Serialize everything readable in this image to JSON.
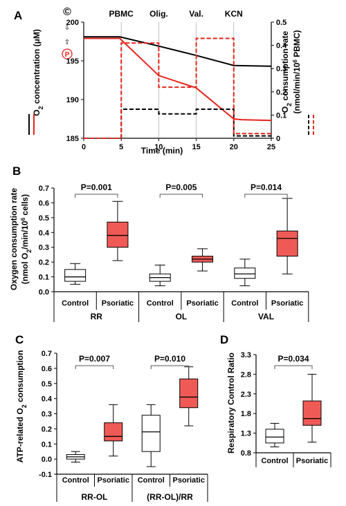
{
  "colors": {
    "control": "#000000",
    "psoriatic": "#e8221b",
    "box_fill_control": "#ffffff",
    "box_fill_psoriatic": "#f05a56"
  },
  "chart_data": [
    {
      "panel": "A",
      "type": "line",
      "xlabel": "Time (min)",
      "ylabel_left": "O2 concentration (μM)",
      "ylabel_right": "O2 consumption rate (nmol/min/10^6 PBMC)",
      "xlim": [
        0,
        25
      ],
      "ylim_left": [
        185,
        200
      ],
      "ylim_right": [
        0,
        0.5
      ],
      "x_ticks": [
        "0",
        "5",
        "10",
        "15",
        "20",
        "25"
      ],
      "y_ticks_left": [
        "185",
        "190",
        "195",
        "200"
      ],
      "y_ticks_right": [
        "0",
        "0.1",
        "0.2",
        "0.3",
        "0.4",
        "0.5"
      ],
      "events": [
        {
          "label": "PBMC",
          "x": 5
        },
        {
          "label": "Olig.",
          "x": 10
        },
        {
          "label": "Val.",
          "x": 15
        },
        {
          "label": "KCN",
          "x": 20
        }
      ],
      "markers": {
        "control_symbol": "©",
        "psoriatic_symbol": "P"
      },
      "series": [
        {
          "group": "control",
          "kind": "concentration",
          "style": "solid",
          "x": [
            0,
            4.8,
            10,
            15,
            20,
            25
          ],
          "y": [
            198.1,
            198.1,
            196.9,
            195.7,
            194.4,
            194.3
          ]
        },
        {
          "group": "psoriatic",
          "kind": "concentration",
          "style": "solid",
          "x": [
            0,
            4.8,
            10,
            15,
            20,
            21,
            25
          ],
          "y": [
            197.9,
            197.9,
            193.1,
            191.5,
            187.5,
            187.4,
            187.3
          ]
        },
        {
          "group": "control",
          "kind": "rate",
          "style": "dashed",
          "x": [
            0,
            5,
            5,
            10,
            10,
            15,
            15,
            20,
            20,
            25
          ],
          "y": [
            0,
            0,
            0.125,
            0.125,
            0.105,
            0.105,
            0.125,
            0.125,
            0.01,
            0.01
          ]
        },
        {
          "group": "psoriatic",
          "kind": "rate",
          "style": "dashed",
          "x": [
            0,
            5,
            5,
            10,
            10,
            15,
            15,
            20,
            20,
            25
          ],
          "y": [
            0,
            0,
            0.41,
            0.41,
            0.22,
            0.22,
            0.43,
            0.43,
            0.02,
            0.02
          ]
        }
      ]
    },
    {
      "panel": "B",
      "type": "box",
      "ylabel_lines": [
        "Oxygen consumption rate",
        "(nmol O2/min/10^6 cells)"
      ],
      "ylim": [
        0,
        0.7
      ],
      "y_ticks": [
        "0.0",
        "0.1",
        "0.2",
        "0.3",
        "0.4",
        "0.5",
        "0.6",
        "0.7"
      ],
      "groups": [
        {
          "label": "RR",
          "p_value": "P=0.001",
          "boxes": [
            {
              "category": "Control",
              "min": 0.05,
              "q1": 0.07,
              "median": 0.1,
              "q3": 0.15,
              "max": 0.19
            },
            {
              "category": "Psoriatic",
              "min": 0.21,
              "q1": 0.3,
              "median": 0.38,
              "q3": 0.47,
              "max": 0.61
            }
          ]
        },
        {
          "label": "OL",
          "p_value": "P=0.005",
          "boxes": [
            {
              "category": "Control",
              "min": 0.04,
              "q1": 0.07,
              "median": 0.095,
              "q3": 0.12,
              "max": 0.18
            },
            {
              "category": "Psoriatic",
              "min": 0.14,
              "q1": 0.2,
              "median": 0.22,
              "q3": 0.24,
              "max": 0.29
            }
          ]
        },
        {
          "label": "VAL",
          "p_value": "P=0.014",
          "boxes": [
            {
              "category": "Control",
              "min": 0.04,
              "q1": 0.09,
              "median": 0.12,
              "q3": 0.16,
              "max": 0.22
            },
            {
              "category": "Psoriatic",
              "min": 0.12,
              "q1": 0.24,
              "median": 0.36,
              "q3": 0.41,
              "max": 0.63
            }
          ]
        }
      ]
    },
    {
      "panel": "C",
      "type": "box",
      "ylabel": "ATP-related O2 consumption",
      "ylim": [
        -0.1,
        0.7
      ],
      "y_ticks": [
        "-0.1",
        "0.0",
        "0.1",
        "0.2",
        "0.3",
        "0.4",
        "0.5",
        "0.6",
        "0.7"
      ],
      "groups": [
        {
          "label": "RR-OL",
          "p_value": "P=0.007",
          "boxes": [
            {
              "category": "Control",
              "min": -0.02,
              "q1": 0.0,
              "median": 0.015,
              "q3": 0.03,
              "max": 0.05
            },
            {
              "category": "Psoriatic",
              "min": 0.02,
              "q1": 0.12,
              "median": 0.15,
              "q3": 0.24,
              "max": 0.36
            }
          ]
        },
        {
          "label": "(RR-OL)/RR",
          "p_value": "P=0.010",
          "boxes": [
            {
              "category": "Control",
              "min": -0.05,
              "q1": 0.05,
              "median": 0.18,
              "q3": 0.29,
              "max": 0.36
            },
            {
              "category": "Psoriatic",
              "min": 0.22,
              "q1": 0.34,
              "median": 0.41,
              "q3": 0.53,
              "max": 0.61
            }
          ]
        }
      ]
    },
    {
      "panel": "D",
      "type": "box",
      "ylabel": "Respiratory Control Ratio",
      "ylim": [
        0.8,
        3.3
      ],
      "y_ticks": [
        "0.8",
        "1.3",
        "1.8",
        "2.3",
        "2.8",
        "3.3"
      ],
      "groups": [
        {
          "label": "",
          "p_value": "P=0.034",
          "boxes": [
            {
              "category": "Control",
              "min": 0.95,
              "q1": 1.05,
              "median": 1.2,
              "q3": 1.4,
              "max": 1.55
            },
            {
              "category": "Psoriatic",
              "min": 1.07,
              "q1": 1.5,
              "median": 1.67,
              "q3": 2.12,
              "max": 2.8
            }
          ]
        }
      ]
    }
  ]
}
